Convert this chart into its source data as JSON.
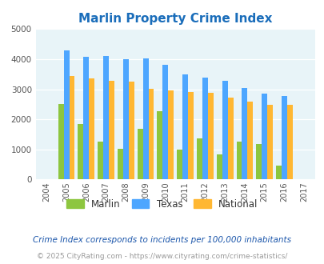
{
  "title": "Marlin Property Crime Index",
  "all_years": [
    2004,
    2005,
    2006,
    2007,
    2008,
    2009,
    2010,
    2011,
    2012,
    2013,
    2014,
    2015,
    2016,
    2017
  ],
  "data_years": [
    2005,
    2006,
    2007,
    2008,
    2009,
    2010,
    2011,
    2012,
    2013,
    2014,
    2015,
    2016
  ],
  "marlin": [
    2500,
    1850,
    1250,
    1025,
    1675,
    2275,
    1000,
    1375,
    825,
    1250,
    1175,
    475
  ],
  "texas": [
    4300,
    4075,
    4100,
    4000,
    4025,
    3800,
    3500,
    3375,
    3275,
    3050,
    2850,
    2775
  ],
  "national": [
    3450,
    3350,
    3275,
    3250,
    3025,
    2950,
    2900,
    2875,
    2725,
    2600,
    2475,
    2475
  ],
  "marlin_color": "#8dc63f",
  "texas_color": "#4da6ff",
  "national_color": "#ffb732",
  "bg_color": "#e8f4f8",
  "ylim": [
    0,
    5000
  ],
  "yticks": [
    0,
    1000,
    2000,
    3000,
    4000,
    5000
  ],
  "footnote1": "Crime Index corresponds to incidents per 100,000 inhabitants",
  "footnote2": "© 2025 CityRating.com - https://www.cityrating.com/crime-statistics/",
  "title_color": "#1a6dba",
  "footnote1_color": "#1a55aa",
  "footnote2_color": "#999999",
  "legend_labels": [
    "Marlin",
    "Texas",
    "National"
  ]
}
